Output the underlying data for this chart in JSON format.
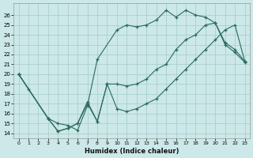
{
  "xlabel": "Humidex (Indice chaleur)",
  "bg_color": "#cce8e8",
  "grid_color": "#aad0d0",
  "line_color": "#2a6b5a",
  "xlim": [
    -0.5,
    23.5
  ],
  "ylim": [
    13.5,
    27.2
  ],
  "yticks": [
    14,
    15,
    16,
    17,
    18,
    19,
    20,
    21,
    22,
    23,
    24,
    25,
    26
  ],
  "xticks": [
    0,
    1,
    2,
    3,
    4,
    5,
    6,
    7,
    8,
    9,
    10,
    11,
    12,
    13,
    14,
    15,
    16,
    17,
    18,
    19,
    20,
    21,
    22,
    23
  ],
  "line1_x": [
    0,
    1,
    3,
    4,
    5,
    6,
    7,
    8,
    10,
    11,
    12,
    13,
    14,
    15,
    16,
    17,
    18,
    19,
    20,
    21,
    22,
    23
  ],
  "line1_y": [
    20.0,
    18.5,
    15.5,
    15.0,
    14.8,
    14.3,
    16.8,
    21.5,
    24.5,
    25.0,
    24.8,
    25.0,
    25.5,
    26.5,
    25.8,
    26.5,
    26.0,
    25.8,
    25.2,
    23.0,
    22.2,
    21.2
  ],
  "line2_x": [
    0,
    3,
    4,
    5,
    6,
    7,
    8,
    9,
    10,
    11,
    12,
    13,
    14,
    15,
    16,
    17,
    18,
    19,
    20,
    21,
    22,
    23
  ],
  "line2_y": [
    20.0,
    15.5,
    14.2,
    14.5,
    15.0,
    17.2,
    15.2,
    19.0,
    19.0,
    18.8,
    19.0,
    19.5,
    20.5,
    21.0,
    22.5,
    23.5,
    24.0,
    25.0,
    25.2,
    23.2,
    22.5,
    21.3
  ],
  "line3_x": [
    0,
    3,
    4,
    5,
    6,
    7,
    8,
    9,
    10,
    11,
    12,
    13,
    14,
    15,
    16,
    17,
    18,
    19,
    20,
    21,
    22,
    23
  ],
  "line3_y": [
    20.0,
    15.5,
    14.2,
    14.5,
    15.0,
    17.0,
    15.2,
    19.0,
    16.5,
    16.2,
    16.5,
    17.0,
    17.5,
    18.5,
    19.5,
    20.5,
    21.5,
    22.5,
    23.5,
    24.5,
    25.0,
    21.3
  ]
}
